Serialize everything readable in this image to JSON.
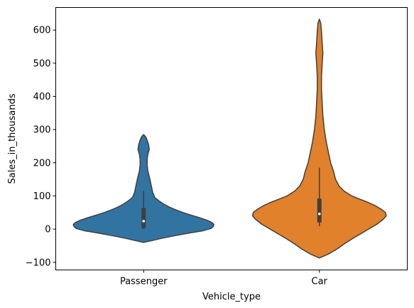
{
  "chart_data": {
    "type": "violin",
    "title": "",
    "xlabel": "Vehicle_type",
    "ylabel": "Sales_in_thousands",
    "ylim": [
      -123,
      668
    ],
    "yticks": [
      -100,
      0,
      100,
      200,
      300,
      400,
      500,
      600
    ],
    "grid": false,
    "categories": [
      "Passenger",
      "Car"
    ],
    "series": [
      {
        "category": "Passenger",
        "color": "#3274a1",
        "outline": "#3f3f3f",
        "profile": [
          [
            -40,
            0
          ],
          [
            -35,
            11
          ],
          [
            -28,
            25
          ],
          [
            -20,
            44
          ],
          [
            -12,
            64
          ],
          [
            -5,
            84
          ],
          [
            2,
            96
          ],
          [
            8,
            99
          ],
          [
            14,
            100
          ],
          [
            20,
            97
          ],
          [
            27,
            90
          ],
          [
            34,
            80
          ],
          [
            42,
            68
          ],
          [
            50,
            56
          ],
          [
            58,
            46
          ],
          [
            66,
            37
          ],
          [
            75,
            29
          ],
          [
            85,
            22
          ],
          [
            95,
            16
          ],
          [
            110,
            13
          ],
          [
            130,
            11
          ],
          [
            150,
            9
          ],
          [
            175,
            6
          ],
          [
            195,
            5
          ],
          [
            210,
            5
          ],
          [
            225,
            6
          ],
          [
            240,
            8
          ],
          [
            255,
            7
          ],
          [
            268,
            5
          ],
          [
            278,
            3
          ],
          [
            285,
            0
          ]
        ],
        "box": {
          "q1": 3,
          "median": 24,
          "q3": 64,
          "whisker_low": 0,
          "whisker_high": 115
        }
      },
      {
        "category": "Car",
        "color": "#e1812c",
        "outline": "#3f3f3f",
        "profile": [
          [
            -87,
            0
          ],
          [
            -75,
            13
          ],
          [
            -60,
            25
          ],
          [
            -45,
            35
          ],
          [
            -30,
            46
          ],
          [
            -15,
            58
          ],
          [
            0,
            70
          ],
          [
            15,
            82
          ],
          [
            30,
            91
          ],
          [
            40,
            95
          ],
          [
            50,
            94
          ],
          [
            60,
            88
          ],
          [
            70,
            80
          ],
          [
            80,
            70
          ],
          [
            90,
            58
          ],
          [
            100,
            46
          ],
          [
            115,
            35
          ],
          [
            130,
            28
          ],
          [
            150,
            23
          ],
          [
            175,
            20
          ],
          [
            200,
            16
          ],
          [
            230,
            13
          ],
          [
            260,
            10
          ],
          [
            300,
            7
          ],
          [
            340,
            5
          ],
          [
            380,
            4
          ],
          [
            420,
            3
          ],
          [
            460,
            3
          ],
          [
            500,
            4
          ],
          [
            530,
            5
          ],
          [
            560,
            4
          ],
          [
            595,
            3
          ],
          [
            620,
            2
          ],
          [
            633,
            0
          ]
        ],
        "box": {
          "q1": 20,
          "median": 46,
          "q3": 92,
          "whisker_low": 9,
          "whisker_high": 185
        }
      }
    ]
  }
}
